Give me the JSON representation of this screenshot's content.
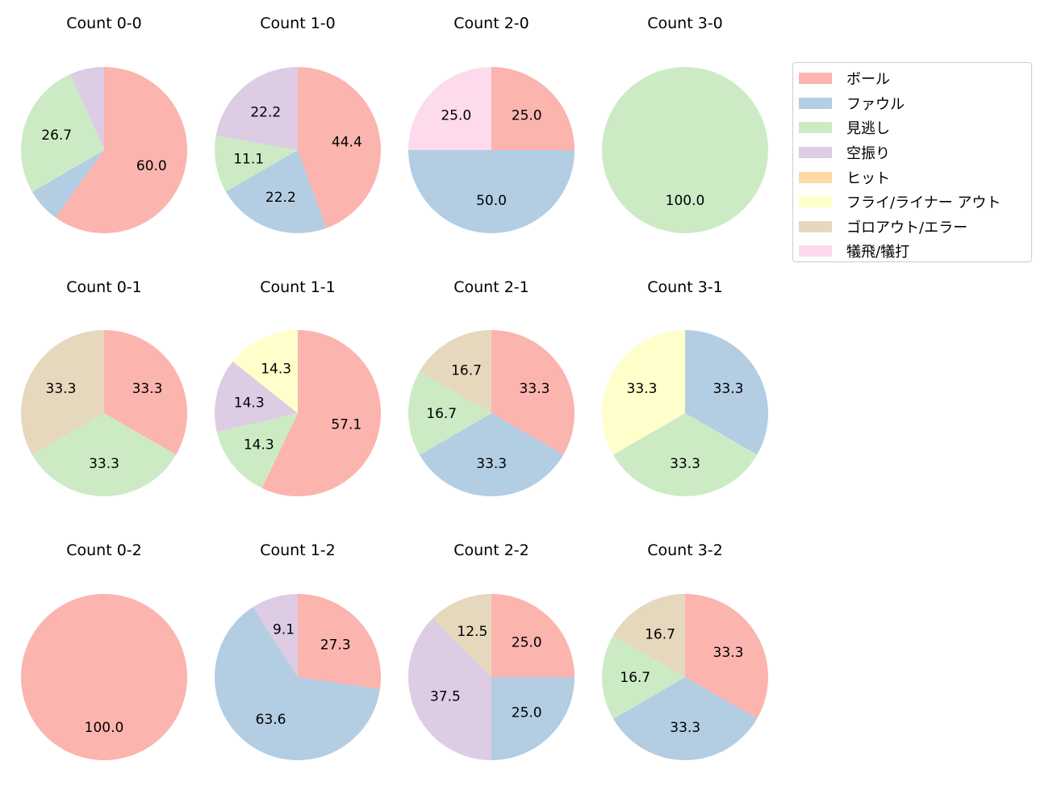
{
  "chart_data": {
    "type": "pie",
    "start_angle": 90,
    "direction": "clockwise",
    "legend_placement": "top-right",
    "categories": [
      "ボール",
      "ファウル",
      "見逃し",
      "空振り",
      "ヒット",
      "フライ/ライナー アウト",
      "ゴロアウト/エラー",
      "犠飛/犠打"
    ],
    "colors": [
      "#fbb4ae",
      "#b3cde3",
      "#ccebc5",
      "#decbe4",
      "#fed9a6",
      "#ffffcc",
      "#e5d8bd",
      "#fddaec"
    ],
    "charts": [
      {
        "title": "Count 0-0",
        "values": [
          60.0,
          6.7,
          26.7,
          6.7,
          0,
          0,
          0,
          0
        ]
      },
      {
        "title": "Count 1-0",
        "values": [
          44.4,
          22.2,
          11.1,
          22.2,
          0,
          0,
          0,
          0
        ]
      },
      {
        "title": "Count 2-0",
        "values": [
          25.0,
          50.0,
          0,
          0,
          0,
          0,
          0,
          25.0
        ]
      },
      {
        "title": "Count 3-0",
        "values": [
          0,
          0,
          100.0,
          0,
          0,
          0,
          0,
          0
        ]
      },
      {
        "title": "Count 0-1",
        "values": [
          33.3,
          0,
          33.3,
          0,
          0,
          0,
          33.3,
          0
        ]
      },
      {
        "title": "Count 1-1",
        "values": [
          57.1,
          0,
          14.3,
          14.3,
          0,
          14.3,
          0,
          0
        ]
      },
      {
        "title": "Count 2-1",
        "values": [
          33.3,
          33.3,
          16.7,
          0,
          0,
          0,
          16.7,
          0
        ]
      },
      {
        "title": "Count 3-1",
        "values": [
          0,
          33.3,
          33.3,
          0,
          0,
          33.3,
          0,
          0
        ]
      },
      {
        "title": "Count 0-2",
        "values": [
          100.0,
          0,
          0,
          0,
          0,
          0,
          0,
          0
        ]
      },
      {
        "title": "Count 1-2",
        "values": [
          27.3,
          63.6,
          0,
          9.1,
          0,
          0,
          0,
          0
        ]
      },
      {
        "title": "Count 2-2",
        "values": [
          25.0,
          25.0,
          0,
          37.5,
          0,
          0,
          12.5,
          0
        ]
      },
      {
        "title": "Count 3-2",
        "values": [
          33.3,
          33.3,
          16.7,
          0,
          0,
          0,
          16.7,
          0
        ]
      }
    ]
  }
}
